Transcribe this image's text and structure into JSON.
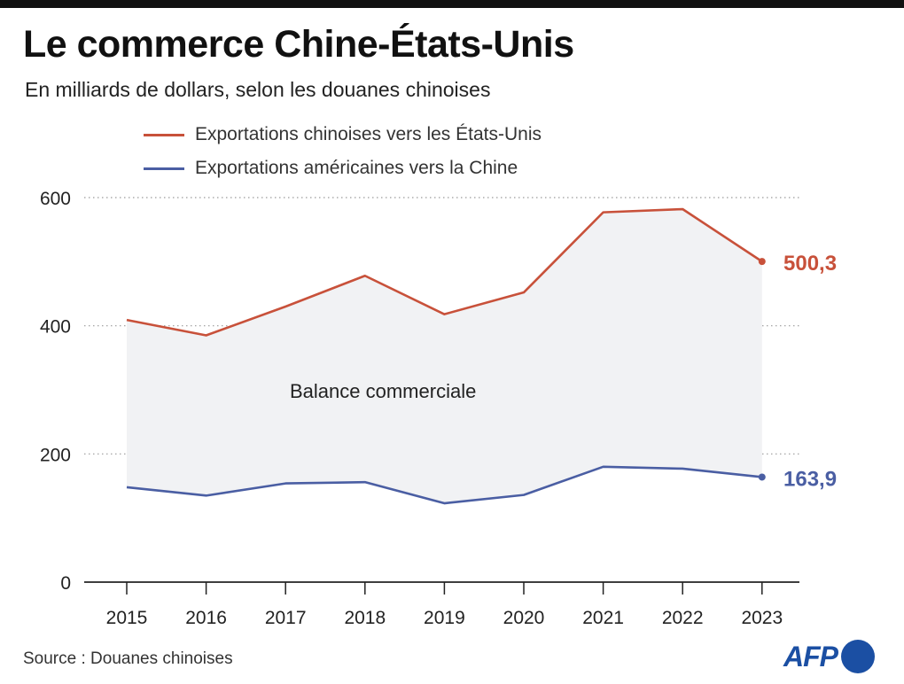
{
  "header": {
    "title": "Le commerce Chine-États-Unis",
    "subtitle": "En milliards de dollars, selon les douanes chinoises"
  },
  "legend": {
    "items": [
      {
        "label": "Exportations chinoises vers les États-Unis",
        "color": "#c8513a"
      },
      {
        "label": "Exportations américaines vers la Chine",
        "color": "#4a5ea3"
      }
    ]
  },
  "footer": {
    "source": "Source : Douanes chinoises",
    "logo_text": "AFP"
  },
  "colors": {
    "china_series": "#c8513a",
    "us_series": "#4a5ea3",
    "area_fill": "#f1f2f4",
    "afp_blue": "#1b4fa3"
  },
  "chart_data": {
    "type": "line",
    "title": "Le commerce Chine-États-Unis",
    "subtitle": "En milliards de dollars, selon les douanes chinoises",
    "x": [
      "2015",
      "2016",
      "2017",
      "2018",
      "2019",
      "2020",
      "2021",
      "2022",
      "2023"
    ],
    "series": [
      {
        "name": "Exportations chinoises vers les États-Unis",
        "values": [
          409,
          385,
          430,
          478,
          418,
          452,
          577,
          582,
          500.3
        ],
        "end_label": "500,3"
      },
      {
        "name": "Exportations américaines vers la Chine",
        "values": [
          148,
          135,
          154,
          156,
          123,
          136,
          180,
          177,
          163.9
        ],
        "end_label": "163,9"
      }
    ],
    "area_between_series": true,
    "annotation": "Balance commerciale",
    "yticks": [
      0,
      200,
      400,
      600
    ],
    "ylim": [
      0,
      600
    ],
    "grid": "horizontal-dotted",
    "legend_position": "top-left"
  }
}
